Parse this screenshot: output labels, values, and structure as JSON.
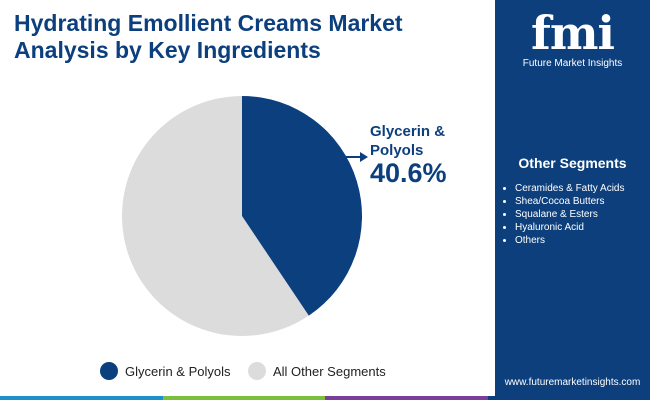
{
  "chart_data": {
    "type": "pie",
    "title": "Hydrating Emollient Creams Market Analysis by Key Ingredients",
    "categories": [
      "Glycerin & Polyols",
      "All Other Segments"
    ],
    "values": [
      40.6,
      59.4
    ],
    "value_labels": [
      "40.6%",
      null
    ],
    "colors": [
      "#0b3f7e",
      "#dcdcdc"
    ]
  },
  "brand": {
    "logo": "fmi",
    "name": "Future Market Insights"
  },
  "sidebar": {
    "heading": "Other Segments",
    "items": [
      "Ceramides & Fatty Acids",
      "Shea/Cocoa Butters",
      "Squalane & Esters",
      "Hyaluronic Acid",
      "Others"
    ]
  },
  "website": "www.futuremarketinsights.com"
}
